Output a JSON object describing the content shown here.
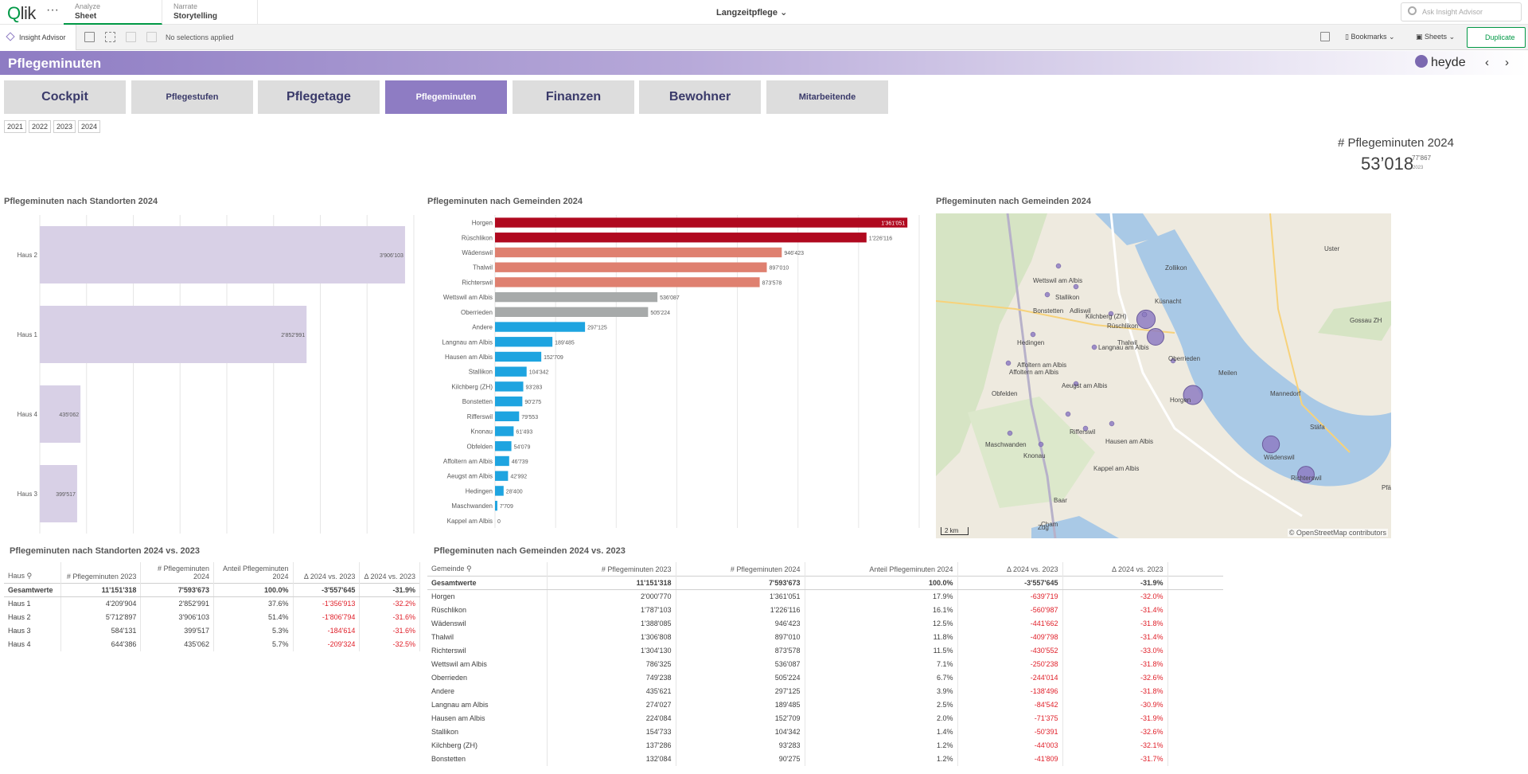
{
  "topbar": {
    "logo": "Qlik",
    "more": "···",
    "tabs": [
      {
        "sub": "Analyze",
        "main": "Sheet"
      },
      {
        "sub": "Narrate",
        "main": "Storytelling"
      }
    ],
    "app_title": "Langzeitpflege",
    "search_placeholder": "Ask Insight Advisor"
  },
  "toolbar": {
    "insight_advisor": "Insight Advisor",
    "no_selections": "No selections applied",
    "bookmarks": "Bookmarks",
    "sheets": "Sheets",
    "duplicate": "Duplicate"
  },
  "sheet": {
    "title": "Pflegeminuten",
    "brand": "heyde"
  },
  "nav_buttons": [
    "Cockpit",
    "Pflegestufen",
    "Pflegetage",
    "Pflegeminuten",
    "Finanzen",
    "Bewohner",
    "Mitarbeitende"
  ],
  "years": [
    "2021",
    "2022",
    "2023",
    "2024"
  ],
  "kpi": {
    "title": "# Pflegeminuten 2024",
    "value": "53’018",
    "comparison": "77’867",
    "comparison_year": "2023"
  },
  "panels": {
    "standorte_chart": "Pflegeminuten nach Standorten 2024",
    "gemeinden_chart": "Pflegeminuten nach Gemeinden 2024",
    "map": "Pflegeminuten nach Gemeinden 2024",
    "standorte_table": "Pflegeminuten nach Standorten 2024 vs. 2023",
    "gemeinden_table": "Pflegeminuten nach Gemeinden 2024 vs. 2023"
  },
  "chart_data": [
    {
      "type": "bar",
      "orientation": "horizontal",
      "title": "Pflegeminuten nach Standorten 2024",
      "categories": [
        "Haus 2",
        "Haus 1",
        "Haus 4",
        "Haus 3"
      ],
      "values": [
        3906103,
        2852991,
        435062,
        399517
      ],
      "value_labels": [
        "3'906'103",
        "2'852'991",
        "435'062",
        "399'517"
      ],
      "color": "#d8d0e6",
      "xlim": [
        0,
        4000000
      ]
    },
    {
      "type": "bar",
      "orientation": "horizontal",
      "title": "Pflegeminuten nach Gemeinden 2024",
      "categories": [
        "Horgen",
        "Rüschlikon",
        "Wädenswil",
        "Thalwil",
        "Richterswil",
        "Wettswil am Albis",
        "Oberrieden",
        "Andere",
        "Langnau am Albis",
        "Hausen am Albis",
        "Stallikon",
        "Kilchberg (ZH)",
        "Bonstetten",
        "Rifferswil",
        "Knonau",
        "Obfelden",
        "Affoltern am Albis",
        "Aeugst am Albis",
        "Hedingen",
        "Maschwanden",
        "Kappel am Albis"
      ],
      "values": [
        1361051,
        1226116,
        946423,
        897010,
        873578,
        536087,
        505224,
        297125,
        189485,
        152709,
        104342,
        93283,
        90275,
        79553,
        61493,
        54079,
        46739,
        42992,
        28400,
        7709,
        0
      ],
      "value_labels": [
        "1'361'051",
        "1'226'116",
        "946'423",
        "897'010",
        "873'578",
        "536'087",
        "505'224",
        "297'125",
        "189'485",
        "152'709",
        "104'342",
        "93'283",
        "90'275",
        "79'553",
        "61'493",
        "54'079",
        "46'739",
        "42'992",
        "28'400",
        "7'709",
        "0"
      ],
      "colors": [
        "#b0091f",
        "#b0091f",
        "#df8070",
        "#df8070",
        "#df8070",
        "#a7aaaa",
        "#a7aaaa",
        "#1ea4e0",
        "#1ea4e0",
        "#1ea4e0",
        "#1ea4e0",
        "#1ea4e0",
        "#1ea4e0",
        "#1ea4e0",
        "#1ea4e0",
        "#1ea4e0",
        "#1ea4e0",
        "#1ea4e0",
        "#1ea4e0",
        "#1ea4e0",
        "#1ea4e0"
      ],
      "xlim": [
        0,
        1400000
      ]
    }
  ],
  "map": {
    "attribution": "© OpenStreetMap contributors",
    "scale": "2 km",
    "labels": [
      "Zollikon",
      "Küsnacht",
      "Meilen",
      "Mannedorf",
      "Stäfa",
      "Uster",
      "Gossau ZH",
      "Wettswil am Albis",
      "Stallikon",
      "Bonstetten",
      "Adliswil",
      "Kilchberg (ZH)",
      "Rüschlikon",
      "Thalwil",
      "Langnau am Albis",
      "Oberrieden",
      "Hedingen",
      "Affoltern am Albis",
      "Affoltern am Albis",
      "Aeugst am Albis",
      "Obfelden",
      "Horgen",
      "Rifferswil",
      "Hausen am Albis",
      "Maschwanden",
      "Knonau",
      "Kappel am Albis",
      "Wädenswil",
      "Richterswil",
      "Baar",
      "Cham",
      "Zug",
      "Pfäffi"
    ],
    "bubbles": [
      {
        "name": "Horgen",
        "size": 1361051
      },
      {
        "name": "Rüschlikon",
        "size": 1226116
      },
      {
        "name": "Wädenswil",
        "size": 946423
      },
      {
        "name": "Thalwil",
        "size": 897010
      },
      {
        "name": "Richterswil",
        "size": 873578
      }
    ]
  },
  "standorte_table": {
    "headers": [
      "Haus",
      "# Pflegeminuten 2023",
      "# Pflegeminuten 2024",
      "Anteil Pflegeminuten 2024",
      "Δ 2024 vs. 2023",
      "Δ 2024 vs. 2023"
    ],
    "total": [
      "Gesamtwerte",
      "11'151'318",
      "7'593'673",
      "100.0%",
      "-3'557'645",
      "-31.9%"
    ],
    "rows": [
      [
        "Haus 1",
        "4'209'904",
        "2'852'991",
        "37.6%",
        "-1'356'913",
        "-32.2%"
      ],
      [
        "Haus 2",
        "5'712'897",
        "3'906'103",
        "51.4%",
        "-1'806'794",
        "-31.6%"
      ],
      [
        "Haus 3",
        "584'131",
        "399'517",
        "5.3%",
        "-184'614",
        "-31.6%"
      ],
      [
        "Haus 4",
        "644'386",
        "435'062",
        "5.7%",
        "-209'324",
        "-32.5%"
      ]
    ]
  },
  "gemeinden_table": {
    "headers": [
      "Gemeinde",
      "# Pflegeminuten 2023",
      "# Pflegeminuten 2024",
      "Anteil Pflegeminuten 2024",
      "Δ 2024 vs. 2023",
      "Δ 2024 vs. 2023"
    ],
    "total": [
      "Gesamtwerte",
      "11'151'318",
      "7'593'673",
      "100.0%",
      "-3'557'645",
      "-31.9%"
    ],
    "rows": [
      [
        "Horgen",
        "2'000'770",
        "1'361'051",
        "17.9%",
        "-639'719",
        "-32.0%"
      ],
      [
        "Rüschlikon",
        "1'787'103",
        "1'226'116",
        "16.1%",
        "-560'987",
        "-31.4%"
      ],
      [
        "Wädenswil",
        "1'388'085",
        "946'423",
        "12.5%",
        "-441'662",
        "-31.8%"
      ],
      [
        "Thalwil",
        "1'306'808",
        "897'010",
        "11.8%",
        "-409'798",
        "-31.4%"
      ],
      [
        "Richterswil",
        "1'304'130",
        "873'578",
        "11.5%",
        "-430'552",
        "-33.0%"
      ],
      [
        "Wettswil am Albis",
        "786'325",
        "536'087",
        "7.1%",
        "-250'238",
        "-31.8%"
      ],
      [
        "Oberrieden",
        "749'238",
        "505'224",
        "6.7%",
        "-244'014",
        "-32.6%"
      ],
      [
        "Andere",
        "435'621",
        "297'125",
        "3.9%",
        "-138'496",
        "-31.8%"
      ],
      [
        "Langnau am Albis",
        "274'027",
        "189'485",
        "2.5%",
        "-84'542",
        "-30.9%"
      ],
      [
        "Hausen am Albis",
        "224'084",
        "152'709",
        "2.0%",
        "-71'375",
        "-31.9%"
      ],
      [
        "Stallikon",
        "154'733",
        "104'342",
        "1.4%",
        "-50'391",
        "-32.6%"
      ],
      [
        "Kilchberg (ZH)",
        "137'286",
        "93'283",
        "1.2%",
        "-44'003",
        "-32.1%"
      ],
      [
        "Bonstetten",
        "132'084",
        "90'275",
        "1.2%",
        "-41'809",
        "-31.7%"
      ]
    ]
  }
}
